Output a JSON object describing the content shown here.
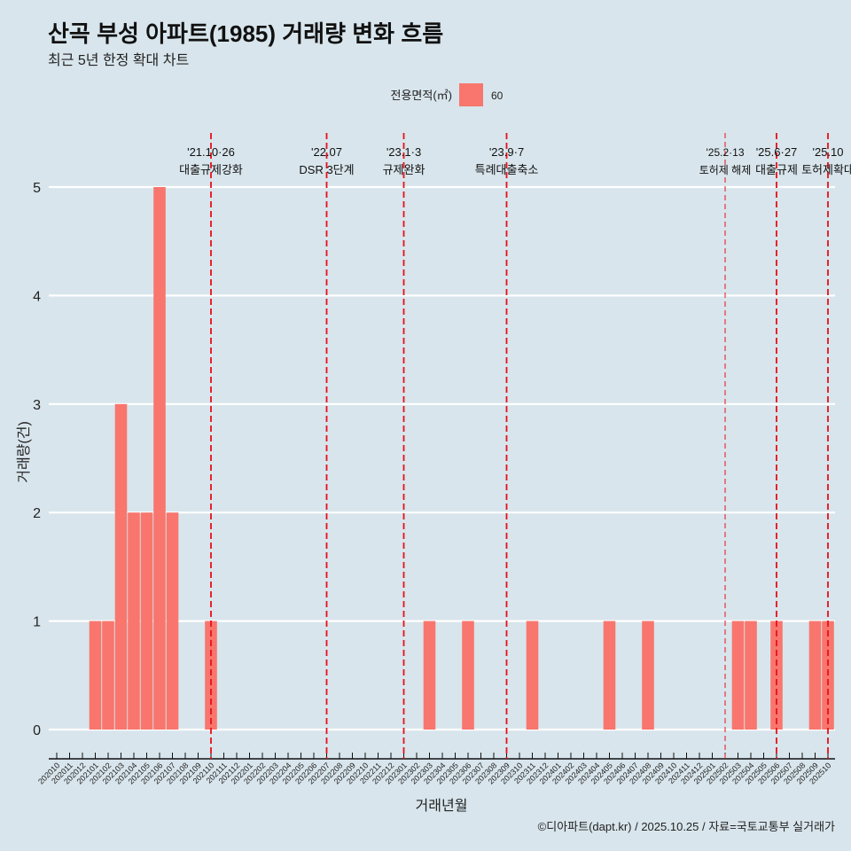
{
  "title": "산곡 부성 아파트(1985) 거래량 변화 흐름",
  "subtitle": "최근 5년 한정 확대 차트",
  "caption": "©디아파트(dapt.kr) / 2025.10.25 / 자료=국토교통부 실거래가",
  "chart_data": {
    "type": "bar",
    "xlabel": "거래년월",
    "ylabel": "거래량(건)",
    "ylim": [
      0,
      5
    ],
    "yticks": [
      0,
      1,
      2,
      3,
      4,
      5
    ],
    "legend": {
      "title": "전용면적(㎡)",
      "placement": "top",
      "entries": [
        {
          "label": "60",
          "color": "#f8766d"
        }
      ]
    },
    "categories": [
      "202010",
      "202011",
      "202012",
      "202101",
      "202102",
      "202103",
      "202104",
      "202105",
      "202106",
      "202107",
      "202108",
      "202109",
      "202110",
      "202111",
      "202112",
      "202201",
      "202202",
      "202203",
      "202204",
      "202205",
      "202206",
      "202207",
      "202208",
      "202209",
      "202210",
      "202211",
      "202212",
      "202301",
      "202302",
      "202303",
      "202304",
      "202305",
      "202306",
      "202307",
      "202308",
      "202309",
      "202310",
      "202311",
      "202312",
      "202401",
      "202402",
      "202403",
      "202404",
      "202405",
      "202406",
      "202407",
      "202408",
      "202409",
      "202410",
      "202411",
      "202412",
      "202501",
      "202502",
      "202503",
      "202504",
      "202505",
      "202506",
      "202507",
      "202508",
      "202509",
      "202510"
    ],
    "values": [
      0,
      0,
      0,
      1,
      1,
      3,
      2,
      2,
      5,
      2,
      0,
      0,
      1,
      0,
      0,
      0,
      0,
      0,
      0,
      0,
      0,
      0,
      0,
      0,
      0,
      0,
      0,
      0,
      0,
      1,
      0,
      0,
      1,
      0,
      0,
      0,
      0,
      1,
      0,
      0,
      0,
      0,
      0,
      1,
      0,
      0,
      1,
      0,
      0,
      0,
      0,
      0,
      0,
      1,
      1,
      0,
      1,
      0,
      0,
      1,
      1
    ],
    "bar_color": "#f8766d",
    "annotations": [
      {
        "at": "202110",
        "line1": "'21.10·26",
        "line2": "대출규제강화",
        "style": "major"
      },
      {
        "at": "202207",
        "line1": "'22.07",
        "line2": "DSR 3단계",
        "style": "major"
      },
      {
        "at": "202301",
        "line1": "'23.1·3",
        "line2": "규제완화",
        "style": "major"
      },
      {
        "at": "202309",
        "line1": "'23.9·7",
        "line2": "특례대출축소",
        "style": "major"
      },
      {
        "at": "202502",
        "line1": "'25.2·13",
        "line2": "토허제 해제",
        "style": "minor"
      },
      {
        "at": "202506",
        "line1": "'25.6·27",
        "line2": "대출규제",
        "style": "major"
      },
      {
        "at": "202510",
        "line1": "'25.10",
        "line2": "토허제확대",
        "style": "major"
      }
    ]
  }
}
